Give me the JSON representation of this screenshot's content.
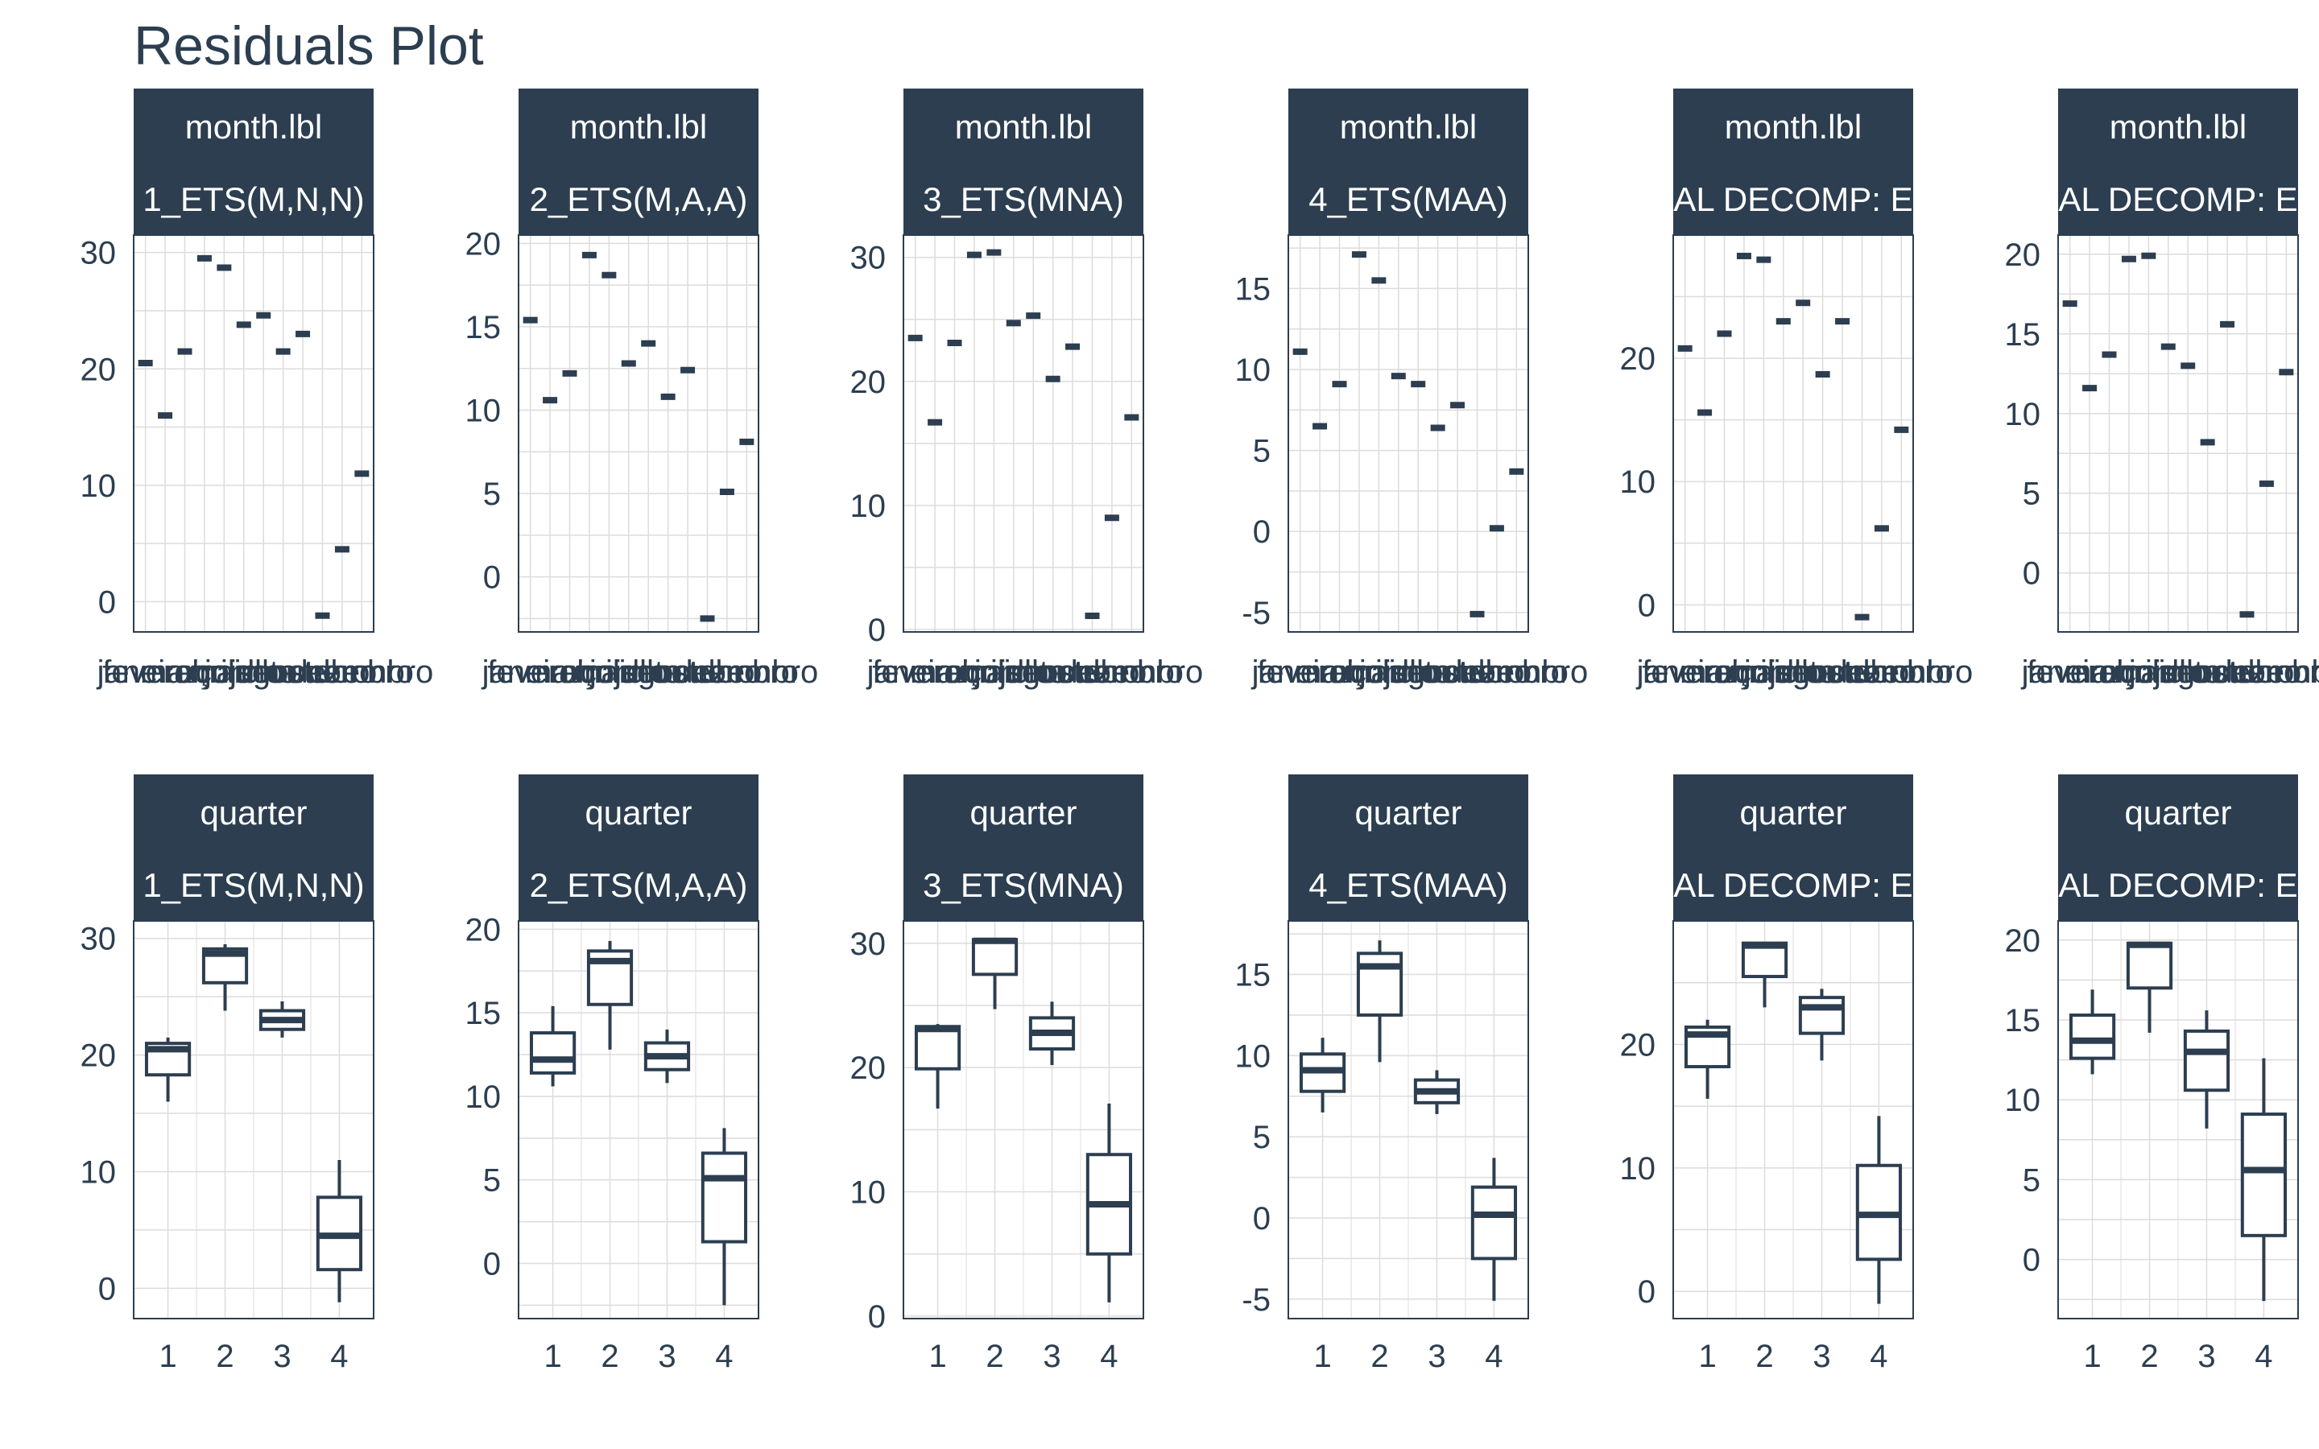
{
  "title": "Residuals Plot",
  "colors": {
    "strip": "#2c3e50",
    "strip_text": "#ffffff",
    "mark": "#2c3e50",
    "grid": "#dcdcdc",
    "text": "#2c3e50",
    "background": "#ffffff"
  },
  "chart_data": [
    {
      "type": "boxplot",
      "row": "month.lbl",
      "model": "1_ETS(M,N,N)",
      "strip_label_1": "month.lbl",
      "strip_label_2": "1_ETS(M,N,N)",
      "yticks": [
        0,
        10,
        20,
        30
      ],
      "ylim": [
        -2.6,
        31.5
      ],
      "categories": [
        "janeiro",
        "fevereiro",
        "março",
        "abril",
        "maio",
        "junho",
        "julho",
        "agosto",
        "setembro",
        "outubro",
        "novembro",
        "dezembro"
      ],
      "values": [
        20.5,
        16,
        21.5,
        29.5,
        28.7,
        23.8,
        24.6,
        21.5,
        23,
        -1.2,
        4.5,
        11
      ]
    },
    {
      "type": "boxplot",
      "row": "month.lbl",
      "model": "2_ETS(M,A,A)",
      "strip_label_1": "month.lbl",
      "strip_label_2": "2_ETS(M,A,A)",
      "yticks": [
        0,
        5,
        10,
        15,
        20
      ],
      "ylim": [
        -3.3,
        20.5
      ],
      "categories": [
        "janeiro",
        "fevereiro",
        "março",
        "abril",
        "maio",
        "junho",
        "julho",
        "agosto",
        "setembro",
        "outubro",
        "novembro",
        "dezembro"
      ],
      "values": [
        15.4,
        10.6,
        12.2,
        19.3,
        18.1,
        12.8,
        14,
        10.8,
        12.4,
        -2.5,
        5.1,
        8.1
      ]
    },
    {
      "type": "boxplot",
      "row": "month.lbl",
      "model": "3_ETS(MNA)",
      "strip_label_1": "month.lbl",
      "strip_label_2": "3_ETS(MNA)",
      "yticks": [
        0,
        10,
        20,
        30
      ],
      "ylim": [
        -0.2,
        31.8
      ],
      "categories": [
        "janeiro",
        "fevereiro",
        "março",
        "abril",
        "maio",
        "junho",
        "julho",
        "agosto",
        "setembro",
        "outubro",
        "novembro",
        "dezembro"
      ],
      "values": [
        23.5,
        16.7,
        23.1,
        30.2,
        30.4,
        24.7,
        25.3,
        20.2,
        22.8,
        1.1,
        9,
        17.1
      ]
    },
    {
      "type": "boxplot",
      "row": "month.lbl",
      "model": "4_ETS(MAA)",
      "strip_label_1": "month.lbl",
      "strip_label_2": "4_ETS(MAA)",
      "yticks": [
        -5,
        0,
        5,
        10,
        15
      ],
      "ylim": [
        -6.2,
        18.3
      ],
      "categories": [
        "janeiro",
        "fevereiro",
        "março",
        "abril",
        "maio",
        "junho",
        "julho",
        "agosto",
        "setembro",
        "outubro",
        "novembro",
        "dezembro"
      ],
      "values": [
        11.1,
        6.5,
        9.1,
        17.1,
        15.5,
        9.6,
        9.1,
        6.4,
        7.8,
        -5.1,
        0.2,
        3.7
      ]
    },
    {
      "type": "boxplot",
      "row": "month.lbl",
      "model": "AL DECOMP: E",
      "strip_label_1": "month.lbl",
      "strip_label_2": "AL DECOMP: E",
      "yticks": [
        0,
        10,
        20
      ],
      "ylim": [
        -2.2,
        30
      ],
      "categories": [
        "janeiro",
        "fevereiro",
        "março",
        "abril",
        "maio",
        "junho",
        "julho",
        "agosto",
        "setembro",
        "outubro",
        "novembro",
        "dezembro"
      ],
      "values": [
        20.8,
        15.6,
        22,
        28.3,
        28,
        23,
        24.5,
        18.7,
        23,
        -1,
        6.2,
        14.2
      ]
    },
    {
      "type": "boxplot",
      "row": "month.lbl",
      "model": "AL DECOMP: E",
      "strip_label_1": "month.lbl",
      "strip_label_2": "AL DECOMP: E",
      "yticks": [
        0,
        5,
        10,
        15,
        20
      ],
      "ylim": [
        -3.7,
        21.2
      ],
      "categories": [
        "janeiro",
        "fevereiro",
        "março",
        "abril",
        "maio",
        "junho",
        "julho",
        "agosto",
        "setembro",
        "outubro",
        "novembro",
        "dezembro"
      ],
      "values": [
        16.9,
        11.6,
        13.7,
        19.7,
        19.9,
        14.2,
        13,
        8.2,
        15.6,
        -2.6,
        5.6,
        12.6
      ]
    },
    {
      "type": "boxplot",
      "row": "quarter",
      "model": "1_ETS(M,N,N)",
      "strip_label_1": "quarter",
      "strip_label_2": "1_ETS(M,N,N)",
      "yticks": [
        0,
        10,
        20,
        30
      ],
      "ylim": [
        -2.6,
        31.5
      ],
      "categories": [
        "1",
        "2",
        "3",
        "4"
      ],
      "boxes": [
        {
          "min": 16,
          "q1": 18.3,
          "median": 20.5,
          "q3": 21,
          "max": 21.5
        },
        {
          "min": 23.8,
          "q1": 26.2,
          "median": 28.7,
          "q3": 29.1,
          "max": 29.5
        },
        {
          "min": 21.5,
          "q1": 22.2,
          "median": 23,
          "q3": 23.8,
          "max": 24.6
        },
        {
          "min": -1.2,
          "q1": 1.6,
          "median": 4.5,
          "q3": 7.8,
          "max": 11
        }
      ]
    },
    {
      "type": "boxplot",
      "row": "quarter",
      "model": "2_ETS(M,A,A)",
      "strip_label_1": "quarter",
      "strip_label_2": "2_ETS(M,A,A)",
      "yticks": [
        0,
        5,
        10,
        15,
        20
      ],
      "ylim": [
        -3.3,
        20.5
      ],
      "categories": [
        "1",
        "2",
        "3",
        "4"
      ],
      "boxes": [
        {
          "min": 10.6,
          "q1": 11.4,
          "median": 12.2,
          "q3": 13.8,
          "max": 15.4
        },
        {
          "min": 12.8,
          "q1": 15.5,
          "median": 18.1,
          "q3": 18.7,
          "max": 19.3
        },
        {
          "min": 10.8,
          "q1": 11.6,
          "median": 12.4,
          "q3": 13.2,
          "max": 14
        },
        {
          "min": -2.5,
          "q1": 1.3,
          "median": 5.1,
          "q3": 6.6,
          "max": 8.1
        }
      ]
    },
    {
      "type": "boxplot",
      "row": "quarter",
      "model": "3_ETS(MNA)",
      "strip_label_1": "quarter",
      "strip_label_2": "3_ETS(MNA)",
      "yticks": [
        0,
        10,
        20,
        30
      ],
      "ylim": [
        -0.2,
        31.8
      ],
      "categories": [
        "1",
        "2",
        "3",
        "4"
      ],
      "boxes": [
        {
          "min": 16.7,
          "q1": 19.9,
          "median": 23.1,
          "q3": 23.3,
          "max": 23.5
        },
        {
          "min": 24.7,
          "q1": 27.5,
          "median": 30.2,
          "q3": 30.3,
          "max": 30.4
        },
        {
          "min": 20.2,
          "q1": 21.5,
          "median": 22.8,
          "q3": 24,
          "max": 25.3
        },
        {
          "min": 1.1,
          "q1": 5,
          "median": 9,
          "q3": 13,
          "max": 17.1
        }
      ]
    },
    {
      "type": "boxplot",
      "row": "quarter",
      "model": "4_ETS(MAA)",
      "strip_label_1": "quarter",
      "strip_label_2": "4_ETS(MAA)",
      "yticks": [
        -5,
        0,
        5,
        10,
        15
      ],
      "ylim": [
        -6.2,
        18.3
      ],
      "categories": [
        "1",
        "2",
        "3",
        "4"
      ],
      "boxes": [
        {
          "min": 6.5,
          "q1": 7.8,
          "median": 9.1,
          "q3": 10.1,
          "max": 11.1
        },
        {
          "min": 9.6,
          "q1": 12.5,
          "median": 15.5,
          "q3": 16.3,
          "max": 17.1
        },
        {
          "min": 6.4,
          "q1": 7.1,
          "median": 7.8,
          "q3": 8.5,
          "max": 9.1
        },
        {
          "min": -5.1,
          "q1": -2.5,
          "median": 0.2,
          "q3": 1.9,
          "max": 3.7
        }
      ]
    },
    {
      "type": "boxplot",
      "row": "quarter",
      "model": "AL DECOMP: E",
      "strip_label_1": "quarter",
      "strip_label_2": "AL DECOMP: E",
      "yticks": [
        0,
        10,
        20
      ],
      "ylim": [
        -2.2,
        30
      ],
      "categories": [
        "1",
        "2",
        "3",
        "4"
      ],
      "boxes": [
        {
          "min": 15.6,
          "q1": 18.2,
          "median": 20.8,
          "q3": 21.4,
          "max": 22
        },
        {
          "min": 23,
          "q1": 25.5,
          "median": 28,
          "q3": 28.2,
          "max": 28.3
        },
        {
          "min": 18.7,
          "q1": 20.9,
          "median": 23,
          "q3": 23.8,
          "max": 24.5
        },
        {
          "min": -1,
          "q1": 2.6,
          "median": 6.2,
          "q3": 10.2,
          "max": 14.2
        }
      ]
    },
    {
      "type": "boxplot",
      "row": "quarter",
      "model": "AL DECOMP: E",
      "strip_label_1": "quarter",
      "strip_label_2": "AL DECOMP: E",
      "yticks": [
        0,
        5,
        10,
        15,
        20
      ],
      "ylim": [
        -3.7,
        21.2
      ],
      "categories": [
        "1",
        "2",
        "3",
        "4"
      ],
      "boxes": [
        {
          "min": 11.6,
          "q1": 12.6,
          "median": 13.7,
          "q3": 15.3,
          "max": 16.9
        },
        {
          "min": 14.2,
          "q1": 17,
          "median": 19.7,
          "q3": 19.8,
          "max": 19.9
        },
        {
          "min": 8.2,
          "q1": 10.6,
          "median": 13,
          "q3": 14.3,
          "max": 15.6
        },
        {
          "min": -2.6,
          "q1": 1.5,
          "median": 5.6,
          "q3": 9.1,
          "max": 12.6
        }
      ]
    }
  ]
}
